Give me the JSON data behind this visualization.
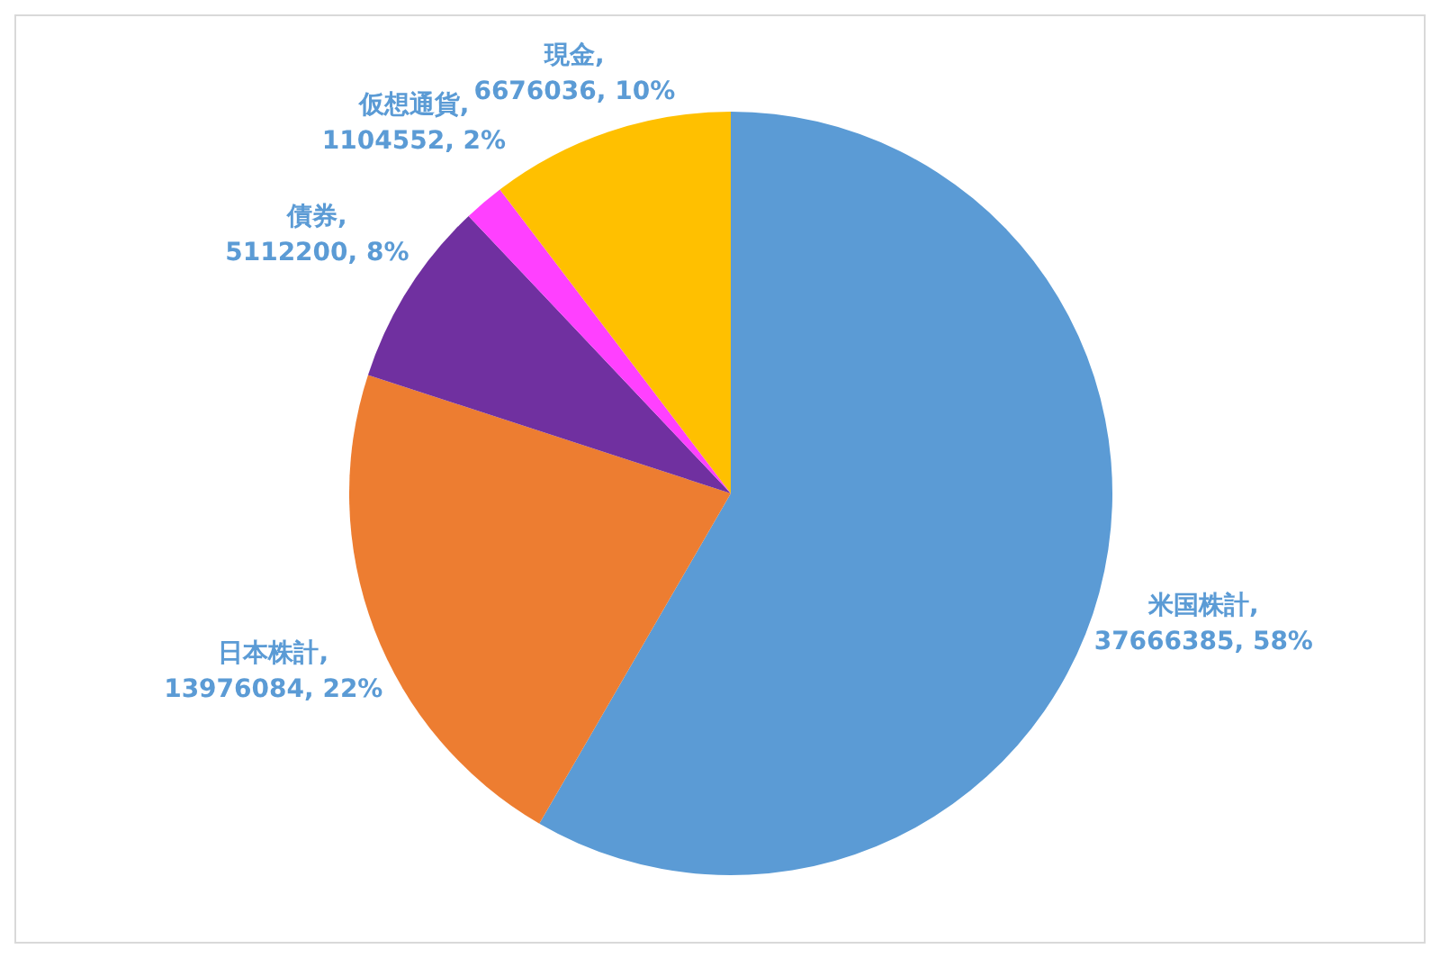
{
  "chart_data": {
    "type": "pie",
    "categories": [
      "米国株計",
      "日本株計",
      "債券",
      "仮想通貨",
      "現金"
    ],
    "values": [
      37666385,
      13976084,
      5112200,
      1104552,
      6676036
    ],
    "colors": [
      "#5b9bd5",
      "#ed7d31",
      "#7030a0",
      "#ff40ff",
      "#ffc000"
    ],
    "value_labels": [
      ", 37666385, 58%",
      ", 13976084, 22%",
      ", 5112200, 8%",
      ", 1104552, 2%",
      ", 6676036, 10%"
    ],
    "legend": false
  }
}
